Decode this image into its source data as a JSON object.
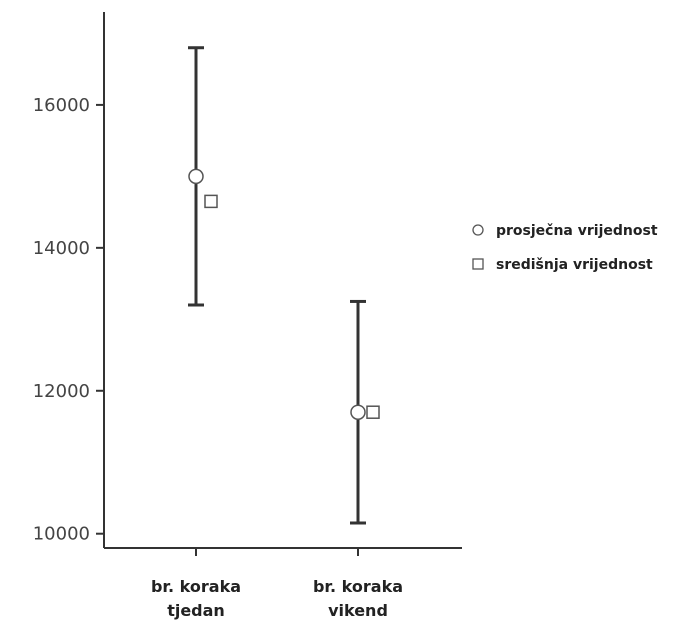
{
  "chart_data": {
    "type": "scatter",
    "ylim": [
      9800,
      17300
    ],
    "yticks": [
      10000,
      12000,
      14000,
      16000
    ],
    "categories": [
      {
        "line1": "br. koraka",
        "line2": "tjedan"
      },
      {
        "line1": "br. koraka",
        "line2": "vikend"
      }
    ],
    "error_bars": [
      {
        "low": 13200,
        "high": 16800
      },
      {
        "low": 10150,
        "high": 13250
      }
    ],
    "series": [
      {
        "name": "prosječna vrijednost",
        "marker": "circle",
        "values": [
          15000,
          11700
        ]
      },
      {
        "name": "središnja vrijednost",
        "marker": "square",
        "values": [
          14650,
          11700
        ]
      }
    ],
    "legend_position": "right",
    "grid": false,
    "colors": {
      "axis": "#333333",
      "errorbar": "#333333",
      "marker_stroke": "#555555",
      "marker_fill": "#ffffff"
    }
  }
}
